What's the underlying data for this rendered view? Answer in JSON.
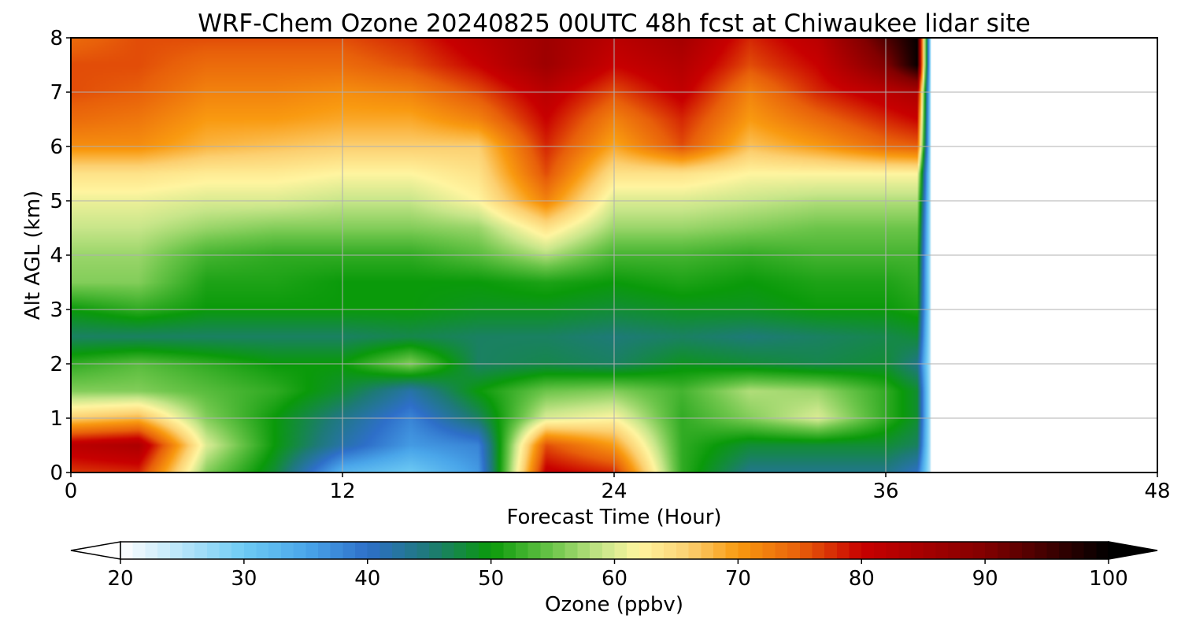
{
  "chart_data": {
    "type": "heatmap",
    "title": "WRF-Chem Ozone  20240825 00UTC 48h fcst at Chiwaukee lidar site",
    "xlabel": "Forecast Time (Hour)",
    "ylabel": "Alt AGL (km)",
    "xlim": [
      0,
      48
    ],
    "ylim": [
      0,
      8
    ],
    "x_ticks": [
      "0",
      "12",
      "24",
      "36",
      "48"
    ],
    "x_tick_values": [
      0,
      12,
      24,
      36,
      48
    ],
    "y_ticks": [
      "0",
      "1",
      "2",
      "3",
      "4",
      "5",
      "6",
      "7",
      "8"
    ],
    "y_tick_values": [
      0,
      1,
      2,
      3,
      4,
      5,
      6,
      7,
      8
    ],
    "grid": true,
    "data_end_hour": 38,
    "x_hours": [
      0,
      3,
      6,
      9,
      12,
      15,
      18,
      21,
      24,
      27,
      30,
      33,
      36,
      37.5
    ],
    "y_km": [
      0,
      0.5,
      1,
      1.5,
      2,
      2.5,
      3,
      3.5,
      4,
      4.5,
      5,
      5.5,
      6,
      6.5,
      7,
      7.5,
      8
    ],
    "values_ppbv": [
      [
        77,
        78,
        56,
        48,
        33,
        30,
        36,
        81,
        78,
        52,
        44,
        44,
        44,
        40
      ],
      [
        82,
        84,
        60,
        50,
        42,
        36,
        38,
        76,
        70,
        52,
        48,
        48,
        48,
        46
      ],
      [
        66,
        68,
        56,
        50,
        44,
        38,
        46,
        60,
        62,
        52,
        56,
        60,
        52,
        48
      ],
      [
        56,
        56,
        54,
        52,
        48,
        42,
        50,
        55,
        56,
        53,
        58,
        57,
        52,
        48
      ],
      [
        52,
        54,
        52,
        50,
        50,
        56,
        46,
        47,
        46,
        49,
        48,
        47,
        48,
        44
      ],
      [
        46,
        46,
        46,
        46,
        46,
        47,
        46,
        46,
        45,
        46,
        45,
        46,
        47,
        48
      ],
      [
        50,
        52,
        50,
        50,
        50,
        50,
        49,
        49,
        48,
        49,
        49,
        50,
        50,
        51
      ],
      [
        56,
        56,
        51,
        51,
        50,
        50,
        50,
        51,
        50,
        51,
        50,
        51,
        51,
        52
      ],
      [
        57,
        57,
        53,
        52,
        52,
        52,
        54,
        58,
        53,
        53,
        52,
        53,
        53,
        53
      ],
      [
        59,
        59,
        57,
        56,
        56,
        56,
        57,
        64,
        57,
        57,
        56,
        55,
        55,
        55
      ],
      [
        61,
        61,
        60,
        60,
        59,
        59,
        62,
        72,
        60,
        60,
        59,
        58,
        58,
        58
      ],
      [
        64,
        64,
        63,
        63,
        62,
        62,
        64,
        76,
        64,
        64,
        62,
        62,
        62,
        62
      ],
      [
        71,
        71,
        68,
        67,
        66,
        66,
        66,
        78,
        69,
        76,
        67,
        70,
        74,
        75
      ],
      [
        74,
        73,
        70,
        70,
        69,
        69,
        72,
        80,
        72,
        78,
        70,
        74,
        78,
        80
      ],
      [
        76,
        75,
        72,
        72,
        71,
        72,
        76,
        82,
        76,
        81,
        72,
        78,
        82,
        84
      ],
      [
        76,
        76,
        74,
        74,
        74,
        76,
        80,
        86,
        80,
        83,
        76,
        80,
        90,
        100
      ],
      [
        74,
        76,
        76,
        76,
        76,
        78,
        82,
        86,
        82,
        85,
        78,
        82,
        94,
        100
      ]
    ],
    "colorbar": {
      "label": "Ozone  (ppbv)",
      "vmin": 20,
      "vmax": 100,
      "ticks": [
        "20",
        "30",
        "40",
        "50",
        "60",
        "70",
        "80",
        "90",
        "100"
      ],
      "tick_values": [
        20,
        30,
        40,
        50,
        60,
        70,
        80,
        90,
        100
      ],
      "extend": "both",
      "color_stops": [
        {
          "v": 20,
          "c": "#ffffff"
        },
        {
          "v": 30,
          "c": "#6ecbf4"
        },
        {
          "v": 35,
          "c": "#4aa6ea"
        },
        {
          "v": 40,
          "c": "#2e6fc9"
        },
        {
          "v": 45,
          "c": "#1e7a78"
        },
        {
          "v": 50,
          "c": "#0a9a0a"
        },
        {
          "v": 55,
          "c": "#6cc54a"
        },
        {
          "v": 59,
          "c": "#c8e68a"
        },
        {
          "v": 62,
          "c": "#fff5a0"
        },
        {
          "v": 66,
          "c": "#fcd071"
        },
        {
          "v": 70,
          "c": "#f99a10"
        },
        {
          "v": 75,
          "c": "#e8600a"
        },
        {
          "v": 80,
          "c": "#c80000"
        },
        {
          "v": 90,
          "c": "#820000"
        },
        {
          "v": 100,
          "c": "#000000"
        }
      ],
      "under_color": "#ffffff",
      "over_color": "#000000"
    }
  }
}
